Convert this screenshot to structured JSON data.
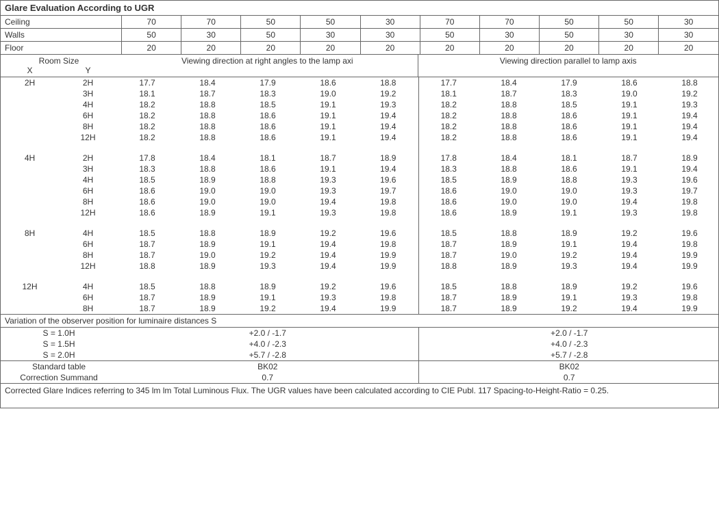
{
  "title": "Glare Evaluation According to UGR",
  "header_rows": [
    {
      "label": "Ceiling",
      "vals": [
        "70",
        "70",
        "50",
        "50",
        "30",
        "70",
        "70",
        "50",
        "50",
        "30"
      ]
    },
    {
      "label": "Walls",
      "vals": [
        "50",
        "30",
        "50",
        "30",
        "30",
        "50",
        "30",
        "50",
        "30",
        "30"
      ]
    },
    {
      "label": "Floor",
      "vals": [
        "20",
        "20",
        "20",
        "20",
        "20",
        "20",
        "20",
        "20",
        "20",
        "20"
      ]
    }
  ],
  "room_size_label": "Room Size",
  "x_label": "X",
  "y_label": "Y",
  "dir_left": "Viewing direction at right angles to the lamp axi",
  "dir_right": "Viewing direction parallel to lamp axis",
  "groups": [
    {
      "x": "2H",
      "rows": [
        {
          "y": "2H",
          "l": [
            "17.7",
            "18.4",
            "17.9",
            "18.6",
            "18.8"
          ],
          "r": [
            "17.7",
            "18.4",
            "17.9",
            "18.6",
            "18.8"
          ]
        },
        {
          "y": "3H",
          "l": [
            "18.1",
            "18.7",
            "18.3",
            "19.0",
            "19.2"
          ],
          "r": [
            "18.1",
            "18.7",
            "18.3",
            "19.0",
            "19.2"
          ]
        },
        {
          "y": "4H",
          "l": [
            "18.2",
            "18.8",
            "18.5",
            "19.1",
            "19.3"
          ],
          "r": [
            "18.2",
            "18.8",
            "18.5",
            "19.1",
            "19.3"
          ]
        },
        {
          "y": "6H",
          "l": [
            "18.2",
            "18.8",
            "18.6",
            "19.1",
            "19.4"
          ],
          "r": [
            "18.2",
            "18.8",
            "18.6",
            "19.1",
            "19.4"
          ]
        },
        {
          "y": "8H",
          "l": [
            "18.2",
            "18.8",
            "18.6",
            "19.1",
            "19.4"
          ],
          "r": [
            "18.2",
            "18.8",
            "18.6",
            "19.1",
            "19.4"
          ]
        },
        {
          "y": "12H",
          "l": [
            "18.2",
            "18.8",
            "18.6",
            "19.1",
            "19.4"
          ],
          "r": [
            "18.2",
            "18.8",
            "18.6",
            "19.1",
            "19.4"
          ]
        }
      ]
    },
    {
      "x": "4H",
      "rows": [
        {
          "y": "2H",
          "l": [
            "17.8",
            "18.4",
            "18.1",
            "18.7",
            "18.9"
          ],
          "r": [
            "17.8",
            "18.4",
            "18.1",
            "18.7",
            "18.9"
          ]
        },
        {
          "y": "3H",
          "l": [
            "18.3",
            "18.8",
            "18.6",
            "19.1",
            "19.4"
          ],
          "r": [
            "18.3",
            "18.8",
            "18.6",
            "19.1",
            "19.4"
          ]
        },
        {
          "y": "4H",
          "l": [
            "18.5",
            "18.9",
            "18.8",
            "19.3",
            "19.6"
          ],
          "r": [
            "18.5",
            "18.9",
            "18.8",
            "19.3",
            "19.6"
          ]
        },
        {
          "y": "6H",
          "l": [
            "18.6",
            "19.0",
            "19.0",
            "19.3",
            "19.7"
          ],
          "r": [
            "18.6",
            "19.0",
            "19.0",
            "19.3",
            "19.7"
          ]
        },
        {
          "y": "8H",
          "l": [
            "18.6",
            "19.0",
            "19.0",
            "19.4",
            "19.8"
          ],
          "r": [
            "18.6",
            "19.0",
            "19.0",
            "19.4",
            "19.8"
          ]
        },
        {
          "y": "12H",
          "l": [
            "18.6",
            "18.9",
            "19.1",
            "19.3",
            "19.8"
          ],
          "r": [
            "18.6",
            "18.9",
            "19.1",
            "19.3",
            "19.8"
          ]
        }
      ]
    },
    {
      "x": "8H",
      "rows": [
        {
          "y": "4H",
          "l": [
            "18.5",
            "18.8",
            "18.9",
            "19.2",
            "19.6"
          ],
          "r": [
            "18.5",
            "18.8",
            "18.9",
            "19.2",
            "19.6"
          ]
        },
        {
          "y": "6H",
          "l": [
            "18.7",
            "18.9",
            "19.1",
            "19.4",
            "19.8"
          ],
          "r": [
            "18.7",
            "18.9",
            "19.1",
            "19.4",
            "19.8"
          ]
        },
        {
          "y": "8H",
          "l": [
            "18.7",
            "19.0",
            "19.2",
            "19.4",
            "19.9"
          ],
          "r": [
            "18.7",
            "19.0",
            "19.2",
            "19.4",
            "19.9"
          ]
        },
        {
          "y": "12H",
          "l": [
            "18.8",
            "18.9",
            "19.3",
            "19.4",
            "19.9"
          ],
          "r": [
            "18.8",
            "18.9",
            "19.3",
            "19.4",
            "19.9"
          ]
        }
      ]
    },
    {
      "x": "12H",
      "rows": [
        {
          "y": "4H",
          "l": [
            "18.5",
            "18.8",
            "18.9",
            "19.2",
            "19.6"
          ],
          "r": [
            "18.5",
            "18.8",
            "18.9",
            "19.2",
            "19.6"
          ]
        },
        {
          "y": "6H",
          "l": [
            "18.7",
            "18.9",
            "19.1",
            "19.3",
            "19.8"
          ],
          "r": [
            "18.7",
            "18.9",
            "19.1",
            "19.3",
            "19.8"
          ]
        },
        {
          "y": "8H",
          "l": [
            "18.7",
            "18.9",
            "19.2",
            "19.4",
            "19.9"
          ],
          "r": [
            "18.7",
            "18.9",
            "19.2",
            "19.4",
            "19.9"
          ]
        }
      ]
    }
  ],
  "variation_title": "Variation of the observer position for luminaire distances S",
  "variation_rows": [
    {
      "label": "S = 1.0H",
      "left": "+2.0 / -1.7",
      "right": "+2.0 / -1.7"
    },
    {
      "label": "S = 1.5H",
      "left": "+4.0 / -2.3",
      "right": "+4.0 / -2.3"
    },
    {
      "label": "S = 2.0H",
      "left": "+5.7 / -2.8",
      "right": "+5.7 / -2.8"
    }
  ],
  "std_table_label": "Standard table",
  "std_table_left": "BK02",
  "std_table_right": "BK02",
  "corr_label": "Correction Summand",
  "corr_left": "0.7",
  "corr_right": "0.7",
  "footer": "Corrected Glare Indices referring to 345 lm lm Total Luminous Flux. The UGR values have been calculated according to CIE Publ. 117    Spacing-to-Height-Ratio = 0.25."
}
